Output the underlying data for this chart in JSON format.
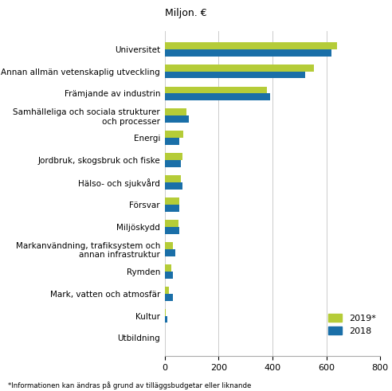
{
  "categories": [
    "Utbildning",
    "Kultur",
    "Mark, vatten och atmosfär",
    "Rymden",
    "Markanvändning, trafiksystem och\nannan infrastruktur",
    "Miljöskydd",
    "Försvar",
    "Hälso- och sjukvård",
    "Jordbruk, skogsbruk och fiske",
    "Energi",
    "Samhälleliga och sociala strukturer\noch processer",
    "Främjande av industrin",
    "Annan allmän vetenskaplig utveckling",
    "Universitet"
  ],
  "values_2019": [
    2,
    5,
    15,
    25,
    30,
    50,
    55,
    60,
    65,
    70,
    80,
    380,
    555,
    640
  ],
  "values_2018": [
    2,
    10,
    30,
    30,
    40,
    55,
    55,
    65,
    60,
    55,
    90,
    390,
    520,
    620
  ],
  "color_2019": "#b5cc38",
  "color_2018": "#1a6fa8",
  "xlabel": "Miljon. €",
  "legend_2019": "2019*",
  "legend_2018": "2018",
  "footnote": "*Informationen kan ändras på grund av tilläggsbudgetar eller liknande",
  "xlim": [
    0,
    800
  ],
  "xticks": [
    0,
    200,
    400,
    600,
    800
  ],
  "bar_height": 0.32,
  "background_color": "#ffffff",
  "title_fontsize": 9,
  "tick_fontsize": 7.5,
  "xtick_fontsize": 8
}
